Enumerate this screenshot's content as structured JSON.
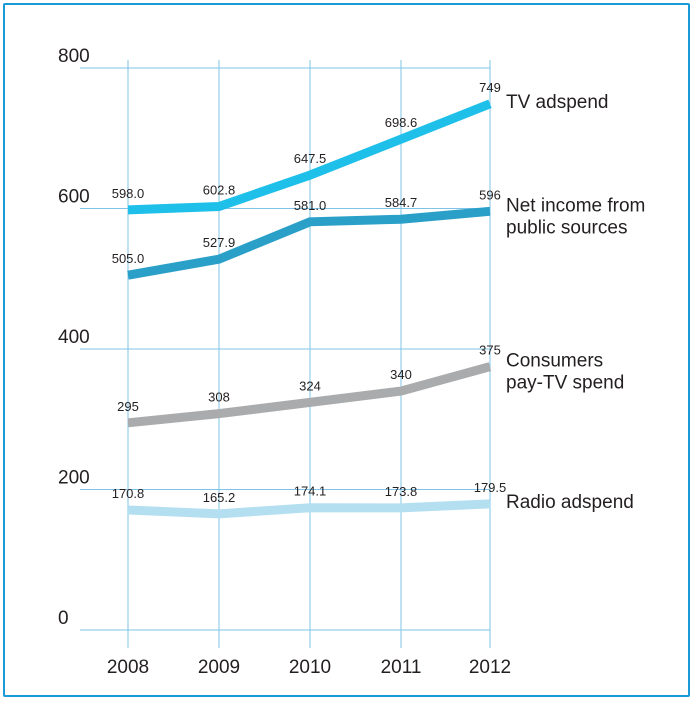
{
  "chart_data": {
    "type": "line",
    "x": [
      "2008",
      "2009",
      "2010",
      "2011",
      "2012"
    ],
    "yticks": [
      "0",
      "200",
      "400",
      "600",
      "800"
    ],
    "ylim": [
      0,
      800
    ],
    "grid": true,
    "series": [
      {
        "name": "TV adspend",
        "label_lines": [
          "TV adspend"
        ],
        "values": [
          598.0,
          602.8,
          647.5,
          698.6,
          749
        ],
        "value_labels": [
          "598.0",
          "602.8",
          "647.5",
          "698.6",
          "749"
        ],
        "color": "#1ec0ea"
      },
      {
        "name": "Net income from public sources",
        "label_lines": [
          "Net income from",
          "public sources"
        ],
        "values": [
          505.0,
          527.9,
          581.0,
          584.7,
          596
        ],
        "value_labels": [
          "505.0",
          "527.9",
          "581.0",
          "584.7",
          "596"
        ],
        "color": "#2aa0c8"
      },
      {
        "name": "Consumers pay-TV spend",
        "label_lines": [
          "Consumers",
          "pay-TV spend"
        ],
        "values": [
          295,
          308,
          324,
          340,
          375
        ],
        "value_labels": [
          "295",
          "308",
          "324",
          "340",
          "375"
        ],
        "color": "#a9abad"
      },
      {
        "name": "Radio adspend",
        "label_lines": [
          "Radio adspend"
        ],
        "values": [
          170.8,
          165.2,
          174.1,
          173.8,
          179.5
        ],
        "value_labels": [
          "170.8",
          "165.2",
          "174.1",
          "173.8",
          "179.5"
        ],
        "color": "#b3dff1"
      }
    ]
  }
}
